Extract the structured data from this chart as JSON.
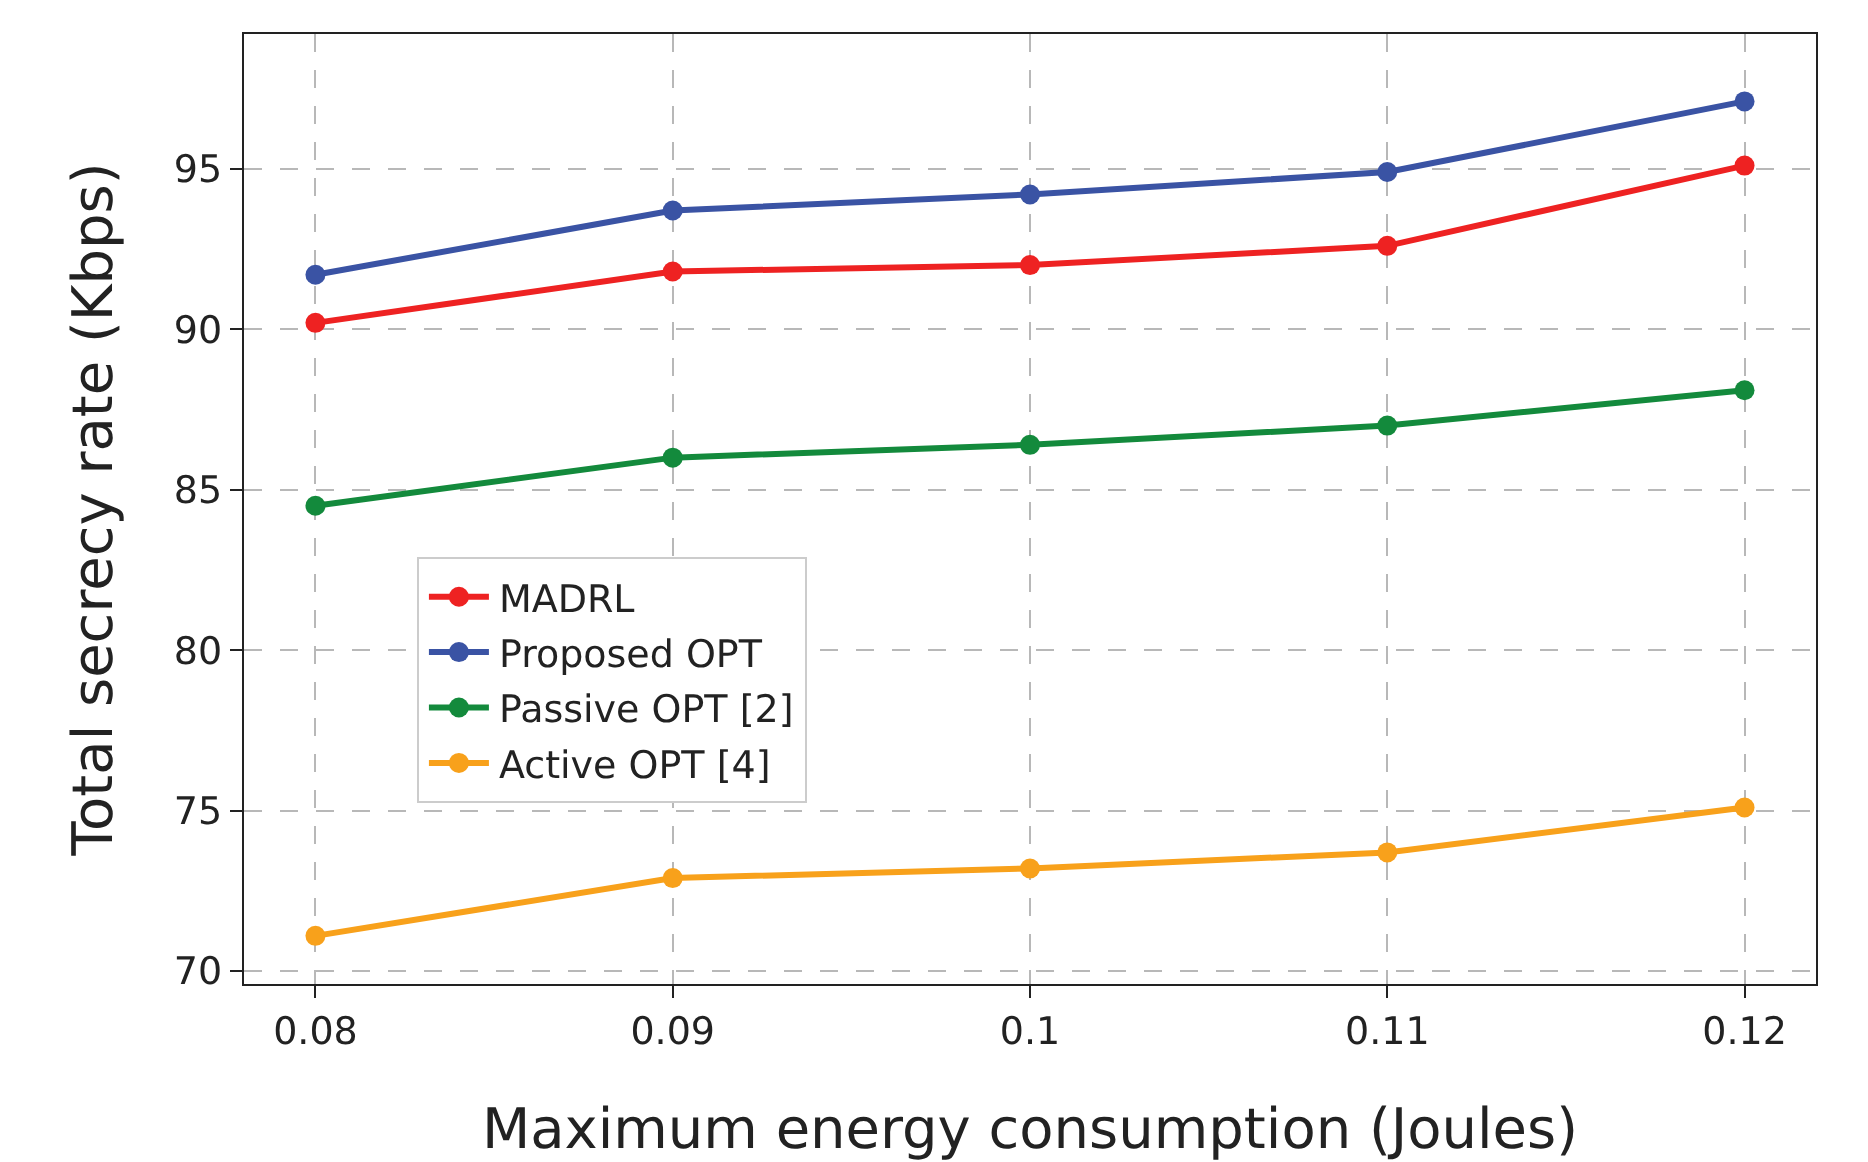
{
  "chart_data": {
    "type": "line",
    "xlabel": "Maximum energy consumption (Joules)",
    "ylabel": "Total secrecy rate (Kbps)",
    "x": [
      0.08,
      0.09,
      0.1,
      0.11,
      0.12
    ],
    "series": [
      {
        "name": "MADRL",
        "color": "#ee2222",
        "values": [
          90.2,
          91.8,
          92.0,
          92.6,
          95.1
        ]
      },
      {
        "name": "Proposed OPT",
        "color": "#3a53a4",
        "values": [
          91.7,
          93.7,
          94.2,
          94.9,
          97.1
        ]
      },
      {
        "name": "Passive OPT [2]",
        "color": "#138a3c",
        "values": [
          84.5,
          86.0,
          86.4,
          87.0,
          88.1
        ]
      },
      {
        "name": "Active OPT [4]",
        "color": "#f8a11b",
        "values": [
          71.1,
          72.9,
          73.2,
          73.7,
          75.1
        ]
      }
    ],
    "xlim": [
      0.078,
      0.122
    ],
    "ylim": [
      69.6,
      99.2
    ],
    "xticks": [
      0.08,
      0.09,
      0.1,
      0.11,
      0.12
    ],
    "yticks": [
      70,
      75,
      80,
      85,
      90,
      95
    ],
    "grid": true,
    "legend": "left",
    "marker": "circle",
    "line_style": "solid"
  }
}
